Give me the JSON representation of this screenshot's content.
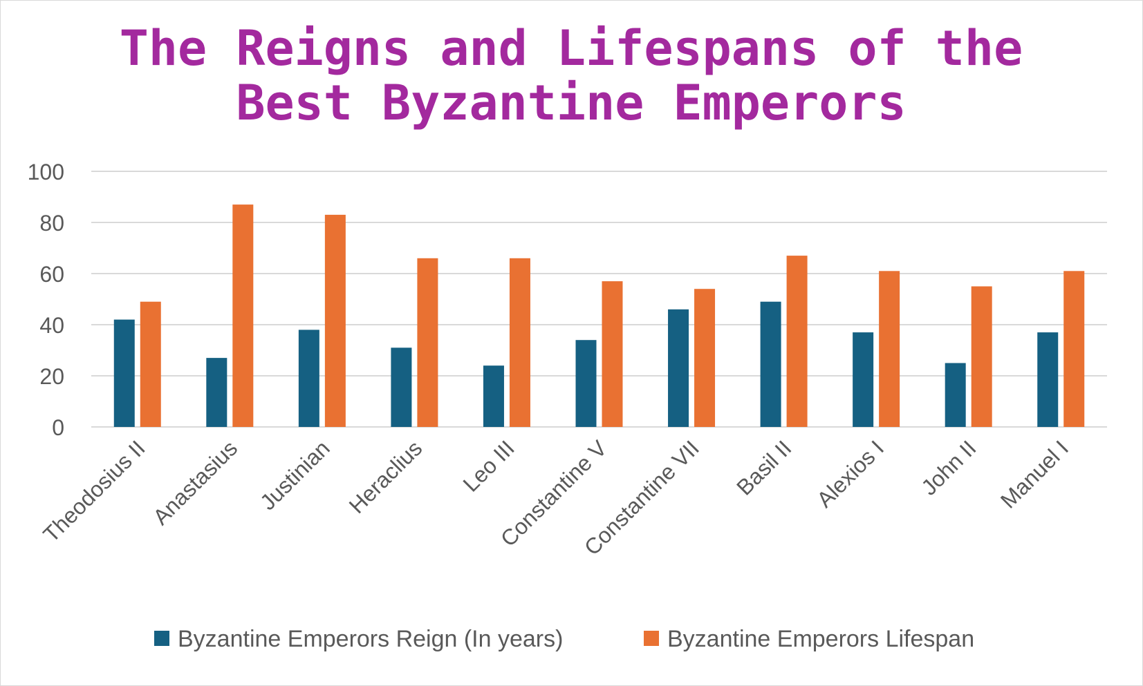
{
  "chart_data": {
    "type": "bar",
    "title": "The Reigns and Lifespans of the Best Byzantine Emperors",
    "title_lines": [
      "The Reigns and Lifespans of the",
      "Best Byzantine Emperors"
    ],
    "xlabel": "",
    "ylabel": "",
    "ylim": [
      0,
      100
    ],
    "yticks": [
      0,
      20,
      40,
      60,
      80,
      100
    ],
    "grid": true,
    "legend_position": "bottom",
    "categories": [
      "Theodosius II",
      "Anastasius",
      "Justinian",
      "Heraclius",
      "Leo III",
      "Constantine V",
      "Constantine VII",
      "Basil II",
      "Alexios I",
      "John II",
      "Manuel I"
    ],
    "series": [
      {
        "name": "Byzantine Emperors Reign (In years)",
        "color": "#156082",
        "values": [
          42,
          27,
          38,
          31,
          24,
          34,
          46,
          49,
          37,
          25,
          37
        ]
      },
      {
        "name": "Byzantine Emperors Lifespan",
        "color": "#e97132",
        "values": [
          49,
          87,
          83,
          66,
          66,
          57,
          54,
          67,
          61,
          55,
          61
        ]
      }
    ]
  }
}
